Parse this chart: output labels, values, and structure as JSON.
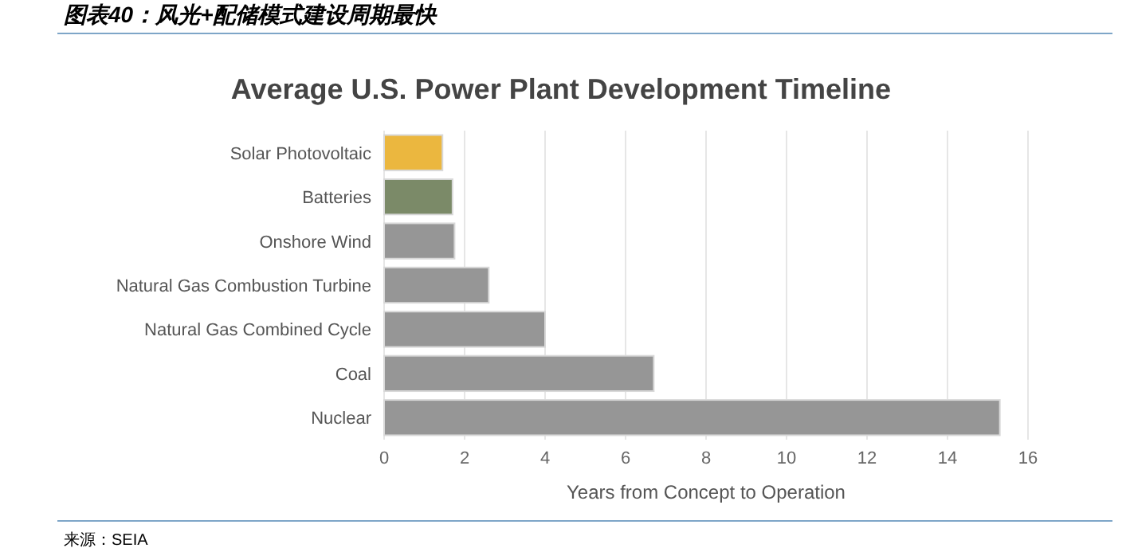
{
  "chart_data": {
    "type": "bar",
    "orientation": "horizontal",
    "title": "图表40：风光+配储模式建设周期最快",
    "subtitle": "Average U.S. Power Plant Development Timeline",
    "xlabel": "Years from Concept to Operation",
    "categories": [
      "Solar Photovoltaic",
      "Batteries",
      "Onshore Wind",
      "Natural Gas Combustion Turbine",
      "Natural Gas Combined Cycle",
      "Coal",
      "Nuclear"
    ],
    "values": [
      1.45,
      1.7,
      1.75,
      2.6,
      4.0,
      6.7,
      15.3
    ],
    "colors": [
      "#ebb73f",
      "#7b8a68",
      "#969696",
      "#969696",
      "#969696",
      "#969696",
      "#969696"
    ],
    "xlim": [
      0,
      16
    ],
    "xticks": [
      0,
      2,
      4,
      6,
      8,
      10,
      12,
      14,
      16
    ],
    "grid": "x",
    "annotations": [
      "来源：SEIA"
    ]
  }
}
